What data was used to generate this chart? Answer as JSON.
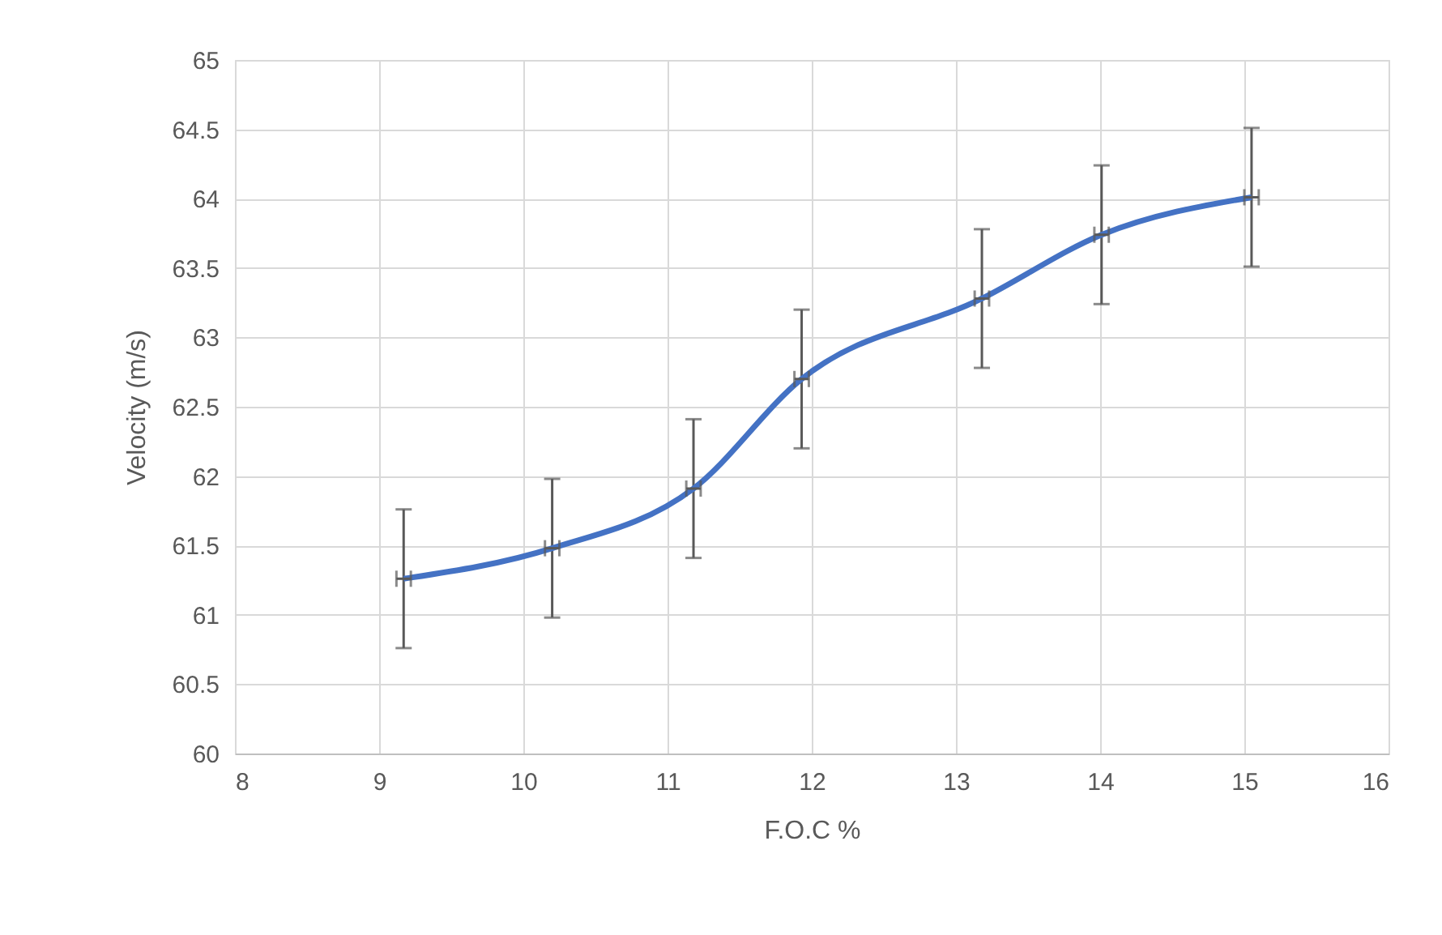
{
  "chart_data": {
    "type": "line",
    "xlabel": "F.O.C %",
    "ylabel": "Velocity (m/s)",
    "x": [
      9.17,
      10.2,
      11.18,
      11.93,
      13.18,
      14.01,
      15.05
    ],
    "series": [
      {
        "color": "#4472c4",
        "values": [
          61.26,
          61.48,
          61.91,
          62.7,
          63.28,
          63.74,
          64.01
        ],
        "errors": [
          0.5,
          0.5,
          0.5,
          0.5,
          0.5,
          0.5,
          0.5
        ],
        "xerrors": [
          0.05,
          0.05,
          0.05,
          0.05,
          0.05,
          0.05,
          0.05
        ]
      }
    ],
    "xlim": [
      8,
      16
    ],
    "xticks": [
      8,
      9,
      10,
      11,
      12,
      13,
      14,
      15,
      16
    ],
    "ylim": [
      60,
      65
    ],
    "yticks": [
      60,
      60.5,
      61,
      61.5,
      62,
      62.5,
      63,
      63.5,
      64,
      64.5,
      65
    ],
    "grid": true,
    "marker": "none",
    "line_style": "solid"
  }
}
